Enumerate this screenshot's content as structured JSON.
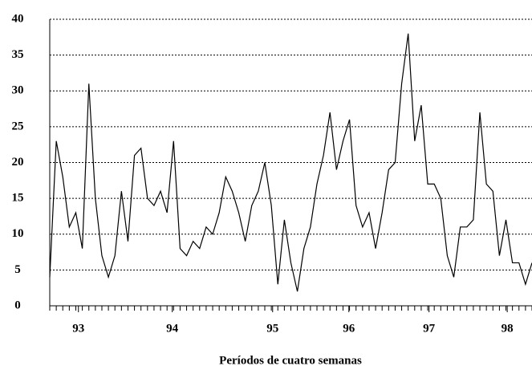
{
  "chart_data": {
    "type": "line",
    "x_label": "Períodos de cuatro semanas",
    "series": [
      {
        "color": "#000000",
        "values": [
          4,
          23,
          18,
          11,
          13,
          8,
          31,
          15,
          7,
          4,
          7,
          16,
          9,
          21,
          22,
          15,
          14,
          16,
          13,
          23,
          8,
          7,
          9,
          8,
          11,
          10,
          13,
          18,
          16,
          13,
          9,
          14,
          16,
          20,
          14,
          3,
          12,
          6,
          2,
          8,
          11,
          17,
          21,
          27,
          19,
          23,
          26,
          14,
          11,
          13,
          8,
          13,
          19,
          20,
          31,
          38,
          23,
          28,
          17,
          17,
          15,
          7,
          4,
          11,
          11,
          12,
          27,
          17,
          16,
          7,
          12,
          6,
          6,
          3,
          6
        ]
      }
    ],
    "xlim": [
      0,
      74
    ],
    "xticks": [
      {
        "value": 4.4,
        "label": "93"
      },
      {
        "value": 18.8,
        "label": "94"
      },
      {
        "value": 34.2,
        "label": "95"
      },
      {
        "value": 45.9,
        "label": "96"
      },
      {
        "value": 58.2,
        "label": "97"
      },
      {
        "value": 70.2,
        "label": "98"
      }
    ],
    "ylim": [
      0,
      40
    ],
    "yticks": [
      0,
      5,
      10,
      15,
      20,
      25,
      30,
      35,
      40
    ],
    "grid": true
  }
}
